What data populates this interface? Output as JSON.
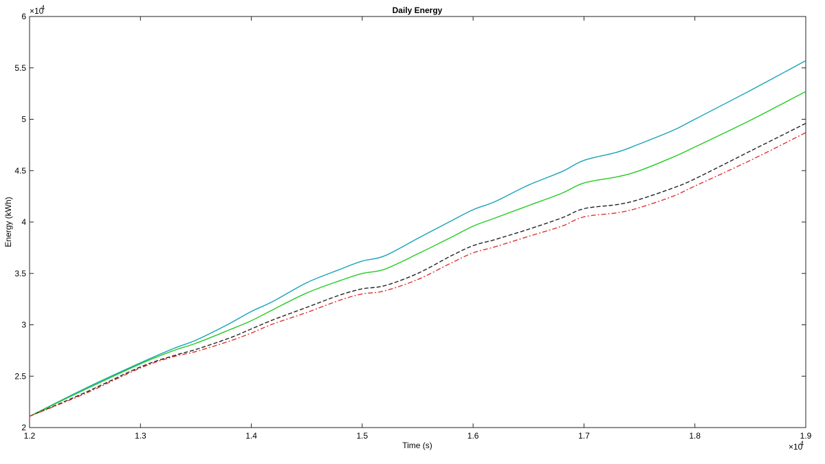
{
  "chart_data": {
    "type": "line",
    "title": "Daily Energy",
    "xlabel": "Time (s)",
    "ylabel": "Energy (kWh)",
    "x_multiplier": "×10",
    "x_multiplier_exp": "4",
    "y_multiplier": "×10",
    "y_multiplier_exp": "4",
    "xlim": [
      12000,
      19000
    ],
    "ylim": [
      20000,
      60000
    ],
    "x_ticks": [
      12000,
      13000,
      14000,
      15000,
      16000,
      17000,
      18000,
      19000
    ],
    "x_tick_labels": [
      "1.2",
      "1.3",
      "1.4",
      "1.5",
      "1.6",
      "1.7",
      "1.8",
      "1.9"
    ],
    "y_ticks": [
      20000,
      25000,
      30000,
      35000,
      40000,
      45000,
      50000,
      55000,
      60000
    ],
    "y_tick_labels": [
      "2",
      "2.5",
      "3",
      "3.5",
      "4",
      "4.5",
      "5",
      "5.5",
      "6"
    ],
    "grid": false,
    "legend": "none",
    "x": [
      12000,
      12500,
      13000,
      13300,
      13500,
      13800,
      14000,
      14200,
      14500,
      14800,
      15000,
      15200,
      15500,
      15800,
      16000,
      16200,
      16500,
      16800,
      17000,
      17300,
      17500,
      17800,
      18000,
      18500,
      19000
    ],
    "series": [
      {
        "color": "#17a2b8",
        "style": "solid",
        "values": [
          21100,
          23800,
          26300,
          27700,
          28500,
          30100,
          31300,
          32300,
          34100,
          35400,
          36200,
          36700,
          38400,
          40100,
          41200,
          42000,
          43600,
          44900,
          46000,
          46800,
          47600,
          48900,
          50000,
          52800,
          55700
        ]
      },
      {
        "color": "#22cc22",
        "style": "solid",
        "values": [
          21100,
          23700,
          26200,
          27500,
          28200,
          29500,
          30400,
          31500,
          33100,
          34300,
          35000,
          35400,
          36900,
          38500,
          39600,
          40400,
          41600,
          42800,
          43800,
          44400,
          45000,
          46300,
          47300,
          49900,
          52700
        ]
      },
      {
        "color": "#222222",
        "style": "dashed",
        "values": [
          21100,
          23400,
          25900,
          27000,
          27600,
          28700,
          29600,
          30500,
          31700,
          32900,
          33500,
          33800,
          35000,
          36700,
          37700,
          38300,
          39300,
          40400,
          41300,
          41700,
          42200,
          43300,
          44200,
          46900,
          49600
        ]
      },
      {
        "color": "#e03030",
        "style": "dashdot",
        "values": [
          21100,
          23300,
          25800,
          26900,
          27400,
          28400,
          29200,
          30100,
          31200,
          32400,
          33000,
          33300,
          34400,
          36000,
          37000,
          37600,
          38600,
          39600,
          40500,
          40900,
          41400,
          42500,
          43500,
          46000,
          48700
        ]
      }
    ]
  }
}
